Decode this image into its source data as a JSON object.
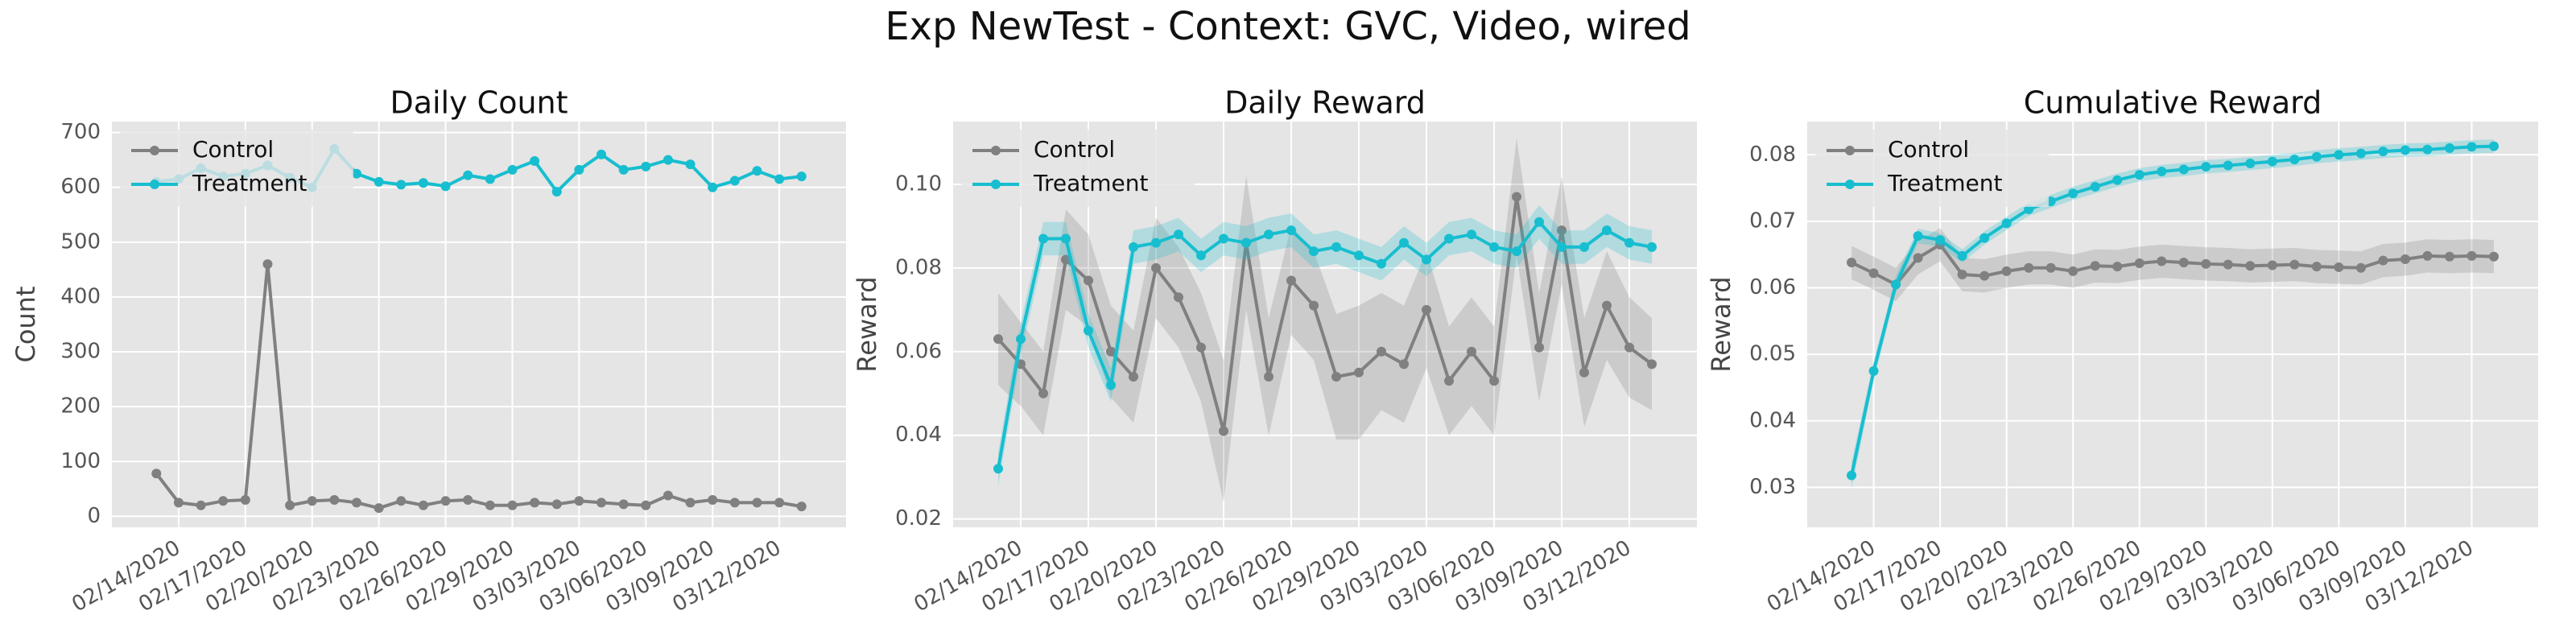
{
  "title": "Exp NewTest - Context: GVC, Video, wired",
  "chart_data": [
    {
      "type": "line",
      "title": "Daily Count",
      "ylabel": "Count",
      "x": [
        "02/13/2020",
        "02/14/2020",
        "02/15/2020",
        "02/16/2020",
        "02/17/2020",
        "02/18/2020",
        "02/19/2020",
        "02/20/2020",
        "02/21/2020",
        "02/22/2020",
        "02/23/2020",
        "02/24/2020",
        "02/25/2020",
        "02/26/2020",
        "02/27/2020",
        "02/28/2020",
        "02/29/2020",
        "03/01/2020",
        "03/02/2020",
        "03/03/2020",
        "03/04/2020",
        "03/05/2020",
        "03/06/2020",
        "03/07/2020",
        "03/08/2020",
        "03/09/2020",
        "03/10/2020",
        "03/11/2020",
        "03/12/2020",
        "03/13/2020"
      ],
      "xlim": [
        "02/11/2020",
        "03/15/2020"
      ],
      "xticks": [
        "02/14/2020",
        "02/17/2020",
        "02/20/2020",
        "02/23/2020",
        "02/26/2020",
        "02/29/2020",
        "03/03/2020",
        "03/06/2020",
        "03/09/2020",
        "03/12/2020"
      ],
      "ylim": [
        -20,
        720
      ],
      "yticks": [
        0,
        100,
        200,
        300,
        400,
        500,
        600,
        700
      ],
      "grid": true,
      "legend": "upper left",
      "series": [
        {
          "name": "Control",
          "color": "#808080",
          "values": [
            78,
            25,
            20,
            28,
            30,
            460,
            20,
            28,
            30,
            25,
            15,
            28,
            20,
            28,
            30,
            20,
            20,
            25,
            22,
            28,
            25,
            22,
            20,
            38,
            25,
            30,
            25,
            25,
            25,
            18
          ]
        },
        {
          "name": "Treatment",
          "color": "#17becf",
          "values": [
            610,
            615,
            635,
            620,
            625,
            640,
            618,
            600,
            670,
            625,
            610,
            605,
            608,
            602,
            622,
            615,
            632,
            648,
            592,
            632,
            660,
            632,
            638,
            650,
            642,
            600,
            612,
            630,
            615,
            620
          ]
        }
      ]
    },
    {
      "type": "line",
      "title": "Daily Reward",
      "ylabel": "Reward",
      "x": [
        "02/13/2020",
        "02/14/2020",
        "02/15/2020",
        "02/16/2020",
        "02/17/2020",
        "02/18/2020",
        "02/19/2020",
        "02/20/2020",
        "02/21/2020",
        "02/22/2020",
        "02/23/2020",
        "02/24/2020",
        "02/25/2020",
        "02/26/2020",
        "02/27/2020",
        "02/28/2020",
        "02/29/2020",
        "03/01/2020",
        "03/02/2020",
        "03/03/2020",
        "03/04/2020",
        "03/05/2020",
        "03/06/2020",
        "03/07/2020",
        "03/08/2020",
        "03/09/2020",
        "03/10/2020",
        "03/11/2020",
        "03/12/2020",
        "03/13/2020"
      ],
      "xlim": [
        "02/11/2020",
        "03/15/2020"
      ],
      "xticks": [
        "02/14/2020",
        "02/17/2020",
        "02/20/2020",
        "02/23/2020",
        "02/26/2020",
        "02/29/2020",
        "03/03/2020",
        "03/06/2020",
        "03/09/2020",
        "03/12/2020"
      ],
      "ylim": [
        0.018,
        0.115
      ],
      "yticks": [
        0.02,
        0.04,
        0.06,
        0.08,
        {
          "value": 0.1,
          "label": "0.10"
        }
      ],
      "grid": true,
      "legend": "upper left",
      "series": [
        {
          "name": "Control",
          "color": "#808080",
          "values": [
            0.063,
            0.057,
            0.05,
            0.082,
            0.077,
            0.06,
            0.054,
            0.08,
            0.073,
            0.061,
            0.041,
            0.086,
            0.054,
            0.077,
            0.071,
            0.054,
            0.055,
            0.06,
            0.057,
            0.07,
            0.053,
            0.06,
            0.053,
            0.097,
            0.061,
            0.089,
            0.055,
            0.071,
            0.061,
            0.057
          ],
          "lower": [
            0.052,
            0.047,
            0.04,
            0.07,
            0.066,
            0.049,
            0.043,
            0.068,
            0.061,
            0.048,
            0.024,
            0.07,
            0.04,
            0.064,
            0.058,
            0.039,
            0.039,
            0.046,
            0.043,
            0.056,
            0.04,
            0.047,
            0.04,
            0.083,
            0.048,
            0.076,
            0.042,
            0.058,
            0.049,
            0.046
          ],
          "upper": [
            0.074,
            0.067,
            0.06,
            0.094,
            0.088,
            0.071,
            0.065,
            0.092,
            0.085,
            0.074,
            0.058,
            0.102,
            0.068,
            0.09,
            0.084,
            0.069,
            0.071,
            0.074,
            0.071,
            0.084,
            0.066,
            0.073,
            0.066,
            0.111,
            0.074,
            0.102,
            0.068,
            0.084,
            0.073,
            0.068
          ]
        },
        {
          "name": "Treatment",
          "color": "#17becf",
          "values": [
            0.032,
            0.063,
            0.087,
            0.087,
            0.065,
            0.052,
            0.085,
            0.086,
            0.088,
            0.083,
            0.087,
            0.086,
            0.088,
            0.089,
            0.084,
            0.085,
            0.083,
            0.081,
            0.086,
            0.082,
            0.087,
            0.088,
            0.085,
            0.084,
            0.091,
            0.085,
            0.085,
            0.089,
            0.086,
            0.085
          ],
          "lower": [
            0.028,
            0.059,
            0.083,
            0.083,
            0.061,
            0.048,
            0.081,
            0.082,
            0.084,
            0.079,
            0.083,
            0.082,
            0.084,
            0.085,
            0.08,
            0.081,
            0.079,
            0.077,
            0.082,
            0.078,
            0.083,
            0.084,
            0.081,
            0.08,
            0.087,
            0.081,
            0.081,
            0.085,
            0.082,
            0.081
          ],
          "upper": [
            0.036,
            0.067,
            0.091,
            0.091,
            0.069,
            0.056,
            0.089,
            0.09,
            0.092,
            0.087,
            0.091,
            0.09,
            0.092,
            0.093,
            0.088,
            0.089,
            0.087,
            0.085,
            0.09,
            0.086,
            0.091,
            0.092,
            0.089,
            0.088,
            0.095,
            0.089,
            0.089,
            0.093,
            0.09,
            0.089
          ]
        }
      ]
    },
    {
      "type": "line",
      "title": "Cumulative Reward",
      "ylabel": "Reward",
      "x": [
        "02/13/2020",
        "02/14/2020",
        "02/15/2020",
        "02/16/2020",
        "02/17/2020",
        "02/18/2020",
        "02/19/2020",
        "02/20/2020",
        "02/21/2020",
        "02/22/2020",
        "02/23/2020",
        "02/24/2020",
        "02/25/2020",
        "02/26/2020",
        "02/27/2020",
        "02/28/2020",
        "02/29/2020",
        "03/01/2020",
        "03/02/2020",
        "03/03/2020",
        "03/04/2020",
        "03/05/2020",
        "03/06/2020",
        "03/07/2020",
        "03/08/2020",
        "03/09/2020",
        "03/10/2020",
        "03/11/2020",
        "03/12/2020",
        "03/13/2020"
      ],
      "xlim": [
        "02/11/2020",
        "03/15/2020"
      ],
      "xticks": [
        "02/14/2020",
        "02/17/2020",
        "02/20/2020",
        "02/23/2020",
        "02/26/2020",
        "02/29/2020",
        "03/03/2020",
        "03/06/2020",
        "03/09/2020",
        "03/12/2020"
      ],
      "ylim": [
        0.024,
        0.085
      ],
      "yticks": [
        0.03,
        0.04,
        0.05,
        0.06,
        0.07,
        0.08
      ],
      "grid": true,
      "legend": "upper left",
      "series": [
        {
          "name": "Control",
          "color": "#808080",
          "values": [
            0.0638,
            0.0622,
            0.0605,
            0.0645,
            0.0665,
            0.062,
            0.0618,
            0.0625,
            0.063,
            0.063,
            0.0625,
            0.0633,
            0.0632,
            0.0637,
            0.064,
            0.0638,
            0.0636,
            0.0635,
            0.0633,
            0.0634,
            0.0635,
            0.0632,
            0.0631,
            0.063,
            0.0641,
            0.0643,
            0.0648,
            0.0647,
            0.0648,
            0.0647
          ],
          "lower": [
            0.0613,
            0.0597,
            0.058,
            0.062,
            0.064,
            0.0595,
            0.0593,
            0.06,
            0.0605,
            0.0605,
            0.06,
            0.0608,
            0.0607,
            0.0612,
            0.0615,
            0.0613,
            0.0611,
            0.061,
            0.0608,
            0.0609,
            0.061,
            0.0607,
            0.0606,
            0.0605,
            0.0616,
            0.0618,
            0.0623,
            0.0622,
            0.0623,
            0.0622
          ],
          "upper": [
            0.0663,
            0.0647,
            0.063,
            0.067,
            0.069,
            0.0645,
            0.0643,
            0.065,
            0.0655,
            0.0655,
            0.065,
            0.0658,
            0.0657,
            0.0662,
            0.0665,
            0.0663,
            0.0661,
            0.066,
            0.0658,
            0.0659,
            0.066,
            0.0657,
            0.0656,
            0.0655,
            0.0666,
            0.0668,
            0.0673,
            0.0672,
            0.0673,
            0.0672
          ]
        },
        {
          "name": "Treatment",
          "color": "#17becf",
          "values": [
            0.0318,
            0.0475,
            0.0605,
            0.0678,
            0.0672,
            0.0648,
            0.0675,
            0.0697,
            0.0718,
            0.073,
            0.0742,
            0.0752,
            0.0762,
            0.077,
            0.0775,
            0.0778,
            0.0782,
            0.0784,
            0.0787,
            0.079,
            0.0793,
            0.0797,
            0.08,
            0.0802,
            0.0805,
            0.0807,
            0.0808,
            0.081,
            0.0812,
            0.0813
          ],
          "lower": [
            0.0298,
            0.046,
            0.0592,
            0.0667,
            0.0662,
            0.0638,
            0.0665,
            0.0687,
            0.0708,
            0.072,
            0.0732,
            0.0742,
            0.0752,
            0.076,
            0.0765,
            0.0768,
            0.0772,
            0.0774,
            0.0777,
            0.078,
            0.0783,
            0.0787,
            0.079,
            0.0792,
            0.0795,
            0.0797,
            0.0798,
            0.08,
            0.0802,
            0.0803
          ],
          "upper": [
            0.0338,
            0.049,
            0.0618,
            0.0689,
            0.0682,
            0.0658,
            0.0685,
            0.0707,
            0.0728,
            0.074,
            0.0752,
            0.0762,
            0.0772,
            0.078,
            0.0785,
            0.0788,
            0.0792,
            0.0794,
            0.0797,
            0.08,
            0.0803,
            0.0807,
            0.081,
            0.0812,
            0.0815,
            0.0817,
            0.0818,
            0.082,
            0.0822,
            0.0823
          ]
        }
      ]
    }
  ]
}
